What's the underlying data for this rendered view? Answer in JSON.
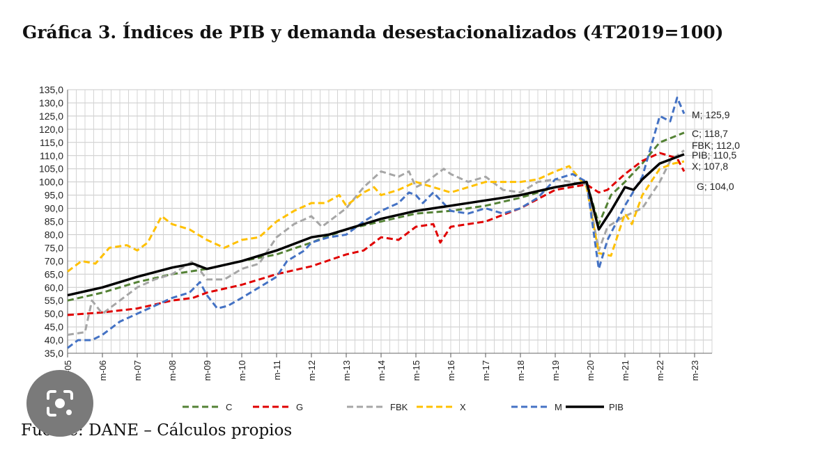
{
  "title": "Gráfica 3. Índices de PIB y demanda desestacionalizados (4T2019=100)",
  "source": "Fuente: DANE – Cálculos propios",
  "chart_data": {
    "type": "line",
    "ylim": [
      35,
      135
    ],
    "yticks": [
      "35,0",
      "40,0",
      "45,0",
      "50,0",
      "55,0",
      "60,0",
      "65,0",
      "70,0",
      "75,0",
      "80,0",
      "85,0",
      "90,0",
      "95,0",
      "100,0",
      "105,0",
      "110,0",
      "115,0",
      "120,0",
      "125,0",
      "130,0",
      "135,0"
    ],
    "xticks": [
      "m-05",
      "m-06",
      "m-07",
      "m-08",
      "m-09",
      "m-10",
      "m-11",
      "m-12",
      "m-13",
      "m-14",
      "m-15",
      "m-16",
      "m-17",
      "m-18",
      "m-19",
      "m-20",
      "m-21",
      "m-22",
      "m-23"
    ],
    "grid": true,
    "legend_position": "bottom",
    "series": [
      {
        "name": "C",
        "color": "#548235",
        "dash": "dashed",
        "points": [
          [
            2005,
            55
          ],
          [
            2006,
            58
          ],
          [
            2007,
            62
          ],
          [
            2008,
            65
          ],
          [
            2009,
            67
          ],
          [
            2010,
            70
          ],
          [
            2011,
            72.5
          ],
          [
            2012,
            77
          ],
          [
            2013,
            82
          ],
          [
            2014,
            85
          ],
          [
            2015,
            88
          ],
          [
            2016,
            89
          ],
          [
            2017,
            91
          ],
          [
            2018,
            94
          ],
          [
            2019,
            98
          ],
          [
            2019.9,
            100
          ],
          [
            2020.25,
            84
          ],
          [
            2020.6,
            95
          ],
          [
            2021,
            100
          ],
          [
            2021.5,
            107
          ],
          [
            2022,
            115
          ],
          [
            2022.7,
            118.7
          ]
        ]
      },
      {
        "name": "G",
        "color": "#e00000",
        "dash": "dashed",
        "points": [
          [
            2005,
            49.5
          ],
          [
            2005.5,
            50
          ],
          [
            2006,
            50.5
          ],
          [
            2007,
            52
          ],
          [
            2008,
            55
          ],
          [
            2008.6,
            56
          ],
          [
            2009,
            58
          ],
          [
            2010,
            61
          ],
          [
            2011,
            65
          ],
          [
            2012,
            68
          ],
          [
            2013,
            72.5
          ],
          [
            2013.5,
            74
          ],
          [
            2014,
            79
          ],
          [
            2014.5,
            78
          ],
          [
            2015,
            83
          ],
          [
            2015.5,
            84
          ],
          [
            2015.7,
            77
          ],
          [
            2016,
            83
          ],
          [
            2017,
            85
          ],
          [
            2018,
            90
          ],
          [
            2019,
            97
          ],
          [
            2019.9,
            99
          ],
          [
            2020.25,
            96
          ],
          [
            2020.5,
            97
          ],
          [
            2021,
            103
          ],
          [
            2021.5,
            108
          ],
          [
            2022,
            111
          ],
          [
            2022.5,
            109
          ],
          [
            2022.7,
            104
          ]
        ]
      },
      {
        "name": "FBK",
        "color": "#a6a6a6",
        "dash": "dashed",
        "points": [
          [
            2005,
            42
          ],
          [
            2005.5,
            43
          ],
          [
            2005.7,
            55
          ],
          [
            2006,
            50
          ],
          [
            2006.5,
            55
          ],
          [
            2007,
            60
          ],
          [
            2007.5,
            63
          ],
          [
            2008,
            65
          ],
          [
            2008.6,
            70
          ],
          [
            2009,
            63
          ],
          [
            2009.5,
            63
          ],
          [
            2010,
            67
          ],
          [
            2010.5,
            69
          ],
          [
            2011,
            79
          ],
          [
            2011.5,
            84
          ],
          [
            2012,
            87
          ],
          [
            2012.3,
            83
          ],
          [
            2013,
            90
          ],
          [
            2013.5,
            98
          ],
          [
            2014,
            104
          ],
          [
            2014.5,
            102
          ],
          [
            2014.8,
            104
          ],
          [
            2015,
            98
          ],
          [
            2015.3,
            100
          ],
          [
            2015.8,
            105
          ],
          [
            2016,
            103
          ],
          [
            2016.5,
            100
          ],
          [
            2017,
            102
          ],
          [
            2017.5,
            97
          ],
          [
            2018,
            96
          ],
          [
            2018.5,
            100
          ],
          [
            2019,
            101
          ],
          [
            2019.9,
            99
          ],
          [
            2020.25,
            74
          ],
          [
            2020.5,
            83
          ],
          [
            2021,
            87
          ],
          [
            2021.5,
            90
          ],
          [
            2022,
            100
          ],
          [
            2022.3,
            108
          ],
          [
            2022.7,
            112
          ]
        ]
      },
      {
        "name": "X",
        "color": "#ffc000",
        "dash": "dashed",
        "points": [
          [
            2005,
            66
          ],
          [
            2005.4,
            70
          ],
          [
            2005.8,
            69
          ],
          [
            2006.2,
            75
          ],
          [
            2006.7,
            76
          ],
          [
            2007,
            74
          ],
          [
            2007.3,
            77
          ],
          [
            2007.7,
            87
          ],
          [
            2008,
            84
          ],
          [
            2008.5,
            82
          ],
          [
            2009,
            78
          ],
          [
            2009.5,
            75
          ],
          [
            2010,
            78
          ],
          [
            2010.5,
            79
          ],
          [
            2011,
            85
          ],
          [
            2011.5,
            89
          ],
          [
            2012,
            92
          ],
          [
            2012.4,
            92
          ],
          [
            2012.8,
            95
          ],
          [
            2013,
            91
          ],
          [
            2013.5,
            96
          ],
          [
            2013.8,
            98
          ],
          [
            2014,
            95
          ],
          [
            2014.5,
            97
          ],
          [
            2015,
            100
          ],
          [
            2015.5,
            98
          ],
          [
            2016,
            96
          ],
          [
            2016.5,
            98
          ],
          [
            2017,
            100
          ],
          [
            2017.5,
            100
          ],
          [
            2018,
            100
          ],
          [
            2018.5,
            101
          ],
          [
            2019,
            104
          ],
          [
            2019.4,
            106
          ],
          [
            2019.9,
            98
          ],
          [
            2020.25,
            73
          ],
          [
            2020.6,
            72
          ],
          [
            2021,
            88
          ],
          [
            2021.2,
            84
          ],
          [
            2021.5,
            95
          ],
          [
            2022,
            105
          ],
          [
            2022.4,
            107
          ],
          [
            2022.7,
            107.8
          ]
        ]
      },
      {
        "name": "M",
        "color": "#4472c4",
        "dash": "dashed",
        "points": [
          [
            2005,
            37
          ],
          [
            2005.3,
            40
          ],
          [
            2005.7,
            40
          ],
          [
            2006,
            42
          ],
          [
            2006.5,
            47
          ],
          [
            2007,
            50
          ],
          [
            2007.5,
            53
          ],
          [
            2008,
            56
          ],
          [
            2008.5,
            58
          ],
          [
            2008.8,
            62
          ],
          [
            2009,
            57
          ],
          [
            2009.3,
            52
          ],
          [
            2009.6,
            53
          ],
          [
            2010,
            56
          ],
          [
            2010.5,
            60
          ],
          [
            2011,
            64
          ],
          [
            2011.3,
            70
          ],
          [
            2011.8,
            74
          ],
          [
            2012,
            77
          ],
          [
            2012.5,
            79
          ],
          [
            2013,
            80
          ],
          [
            2013.5,
            85
          ],
          [
            2014,
            89
          ],
          [
            2014.5,
            92
          ],
          [
            2014.8,
            96
          ],
          [
            2015,
            95
          ],
          [
            2015.2,
            92
          ],
          [
            2015.5,
            96
          ],
          [
            2016,
            89
          ],
          [
            2016.5,
            88
          ],
          [
            2017,
            90
          ],
          [
            2017.5,
            88
          ],
          [
            2018,
            90
          ],
          [
            2018.5,
            94
          ],
          [
            2019,
            101
          ],
          [
            2019.5,
            103
          ],
          [
            2019.9,
            100
          ],
          [
            2020.25,
            67
          ],
          [
            2020.5,
            78
          ],
          [
            2021,
            91
          ],
          [
            2021.5,
            102
          ],
          [
            2022,
            125
          ],
          [
            2022.3,
            123
          ],
          [
            2022.5,
            132
          ],
          [
            2022.7,
            125.9
          ]
        ]
      },
      {
        "name": "PIB",
        "color": "#000000",
        "dash": "solid",
        "points": [
          [
            2005,
            57
          ],
          [
            2006,
            60
          ],
          [
            2007,
            64
          ],
          [
            2008,
            67.5
          ],
          [
            2008.6,
            69
          ],
          [
            2009,
            67
          ],
          [
            2010,
            70
          ],
          [
            2011,
            74
          ],
          [
            2012,
            79
          ],
          [
            2012.5,
            80
          ],
          [
            2013,
            82
          ],
          [
            2014,
            86
          ],
          [
            2015,
            89
          ],
          [
            2016,
            91
          ],
          [
            2017,
            93
          ],
          [
            2018,
            95
          ],
          [
            2019,
            98
          ],
          [
            2019.9,
            100
          ],
          [
            2020.25,
            82
          ],
          [
            2020.6,
            89
          ],
          [
            2021,
            98
          ],
          [
            2021.25,
            97
          ],
          [
            2021.5,
            101
          ],
          [
            2022,
            107
          ],
          [
            2022.7,
            110.5
          ]
        ]
      }
    ],
    "end_labels": [
      {
        "text": "M; 125,9",
        "value": 125.9
      },
      {
        "text": "C; 118,7",
        "value": 118.7
      },
      {
        "text": "FBK; 112,0",
        "value": 112.0
      },
      {
        "text": "PIB; 110,5",
        "value": 110.5
      },
      {
        "text": "X; 107,8",
        "value": 107.8
      },
      {
        "text": "G; 104,0",
        "value": 104.0
      }
    ]
  }
}
